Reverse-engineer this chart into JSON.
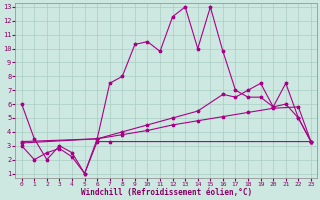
{
  "xlabel": "Windchill (Refroidissement éolien,°C)",
  "background_color": "#cde8e0",
  "grid_color": "#a8cdc4",
  "line_color": "#aa0088",
  "xlim": [
    -0.5,
    23.5
  ],
  "ylim": [
    0.7,
    13.3
  ],
  "xticks": [
    0,
    1,
    2,
    3,
    4,
    5,
    6,
    7,
    8,
    9,
    10,
    11,
    12,
    13,
    14,
    15,
    16,
    17,
    18,
    19,
    20,
    21,
    22,
    23
  ],
  "yticks": [
    1,
    2,
    3,
    4,
    5,
    6,
    7,
    8,
    9,
    10,
    11,
    12,
    13
  ],
  "line1_x": [
    0,
    1,
    2,
    3,
    4,
    5,
    6,
    7,
    8,
    9,
    10,
    11,
    12,
    13,
    14,
    15,
    16,
    17,
    18,
    19,
    20,
    21,
    22,
    23
  ],
  "line1_y": [
    6.0,
    3.5,
    2.0,
    3.0,
    2.5,
    1.0,
    3.5,
    7.5,
    8.0,
    10.3,
    10.5,
    9.8,
    12.3,
    13.0,
    10.0,
    13.0,
    9.8,
    7.0,
    6.5,
    6.5,
    5.8,
    7.5,
    5.0,
    3.3
  ],
  "line2_x": [
    0,
    1,
    2,
    3,
    4,
    5,
    6,
    7,
    23
  ],
  "line2_y": [
    3.0,
    2.0,
    2.5,
    2.8,
    2.2,
    1.0,
    3.3,
    3.3,
    3.3
  ],
  "line3_x": [
    0,
    6,
    8,
    10,
    12,
    14,
    16,
    17,
    18,
    19,
    20,
    21,
    22,
    23
  ],
  "line3_y": [
    3.3,
    3.5,
    4.0,
    4.5,
    5.0,
    5.5,
    6.7,
    6.5,
    7.0,
    7.5,
    5.8,
    6.0,
    5.0,
    3.3
  ],
  "line4_x": [
    0,
    6,
    8,
    10,
    12,
    14,
    16,
    18,
    20,
    22,
    23
  ],
  "line4_y": [
    3.2,
    3.5,
    3.8,
    4.1,
    4.5,
    4.8,
    5.1,
    5.4,
    5.7,
    5.8,
    3.3
  ]
}
